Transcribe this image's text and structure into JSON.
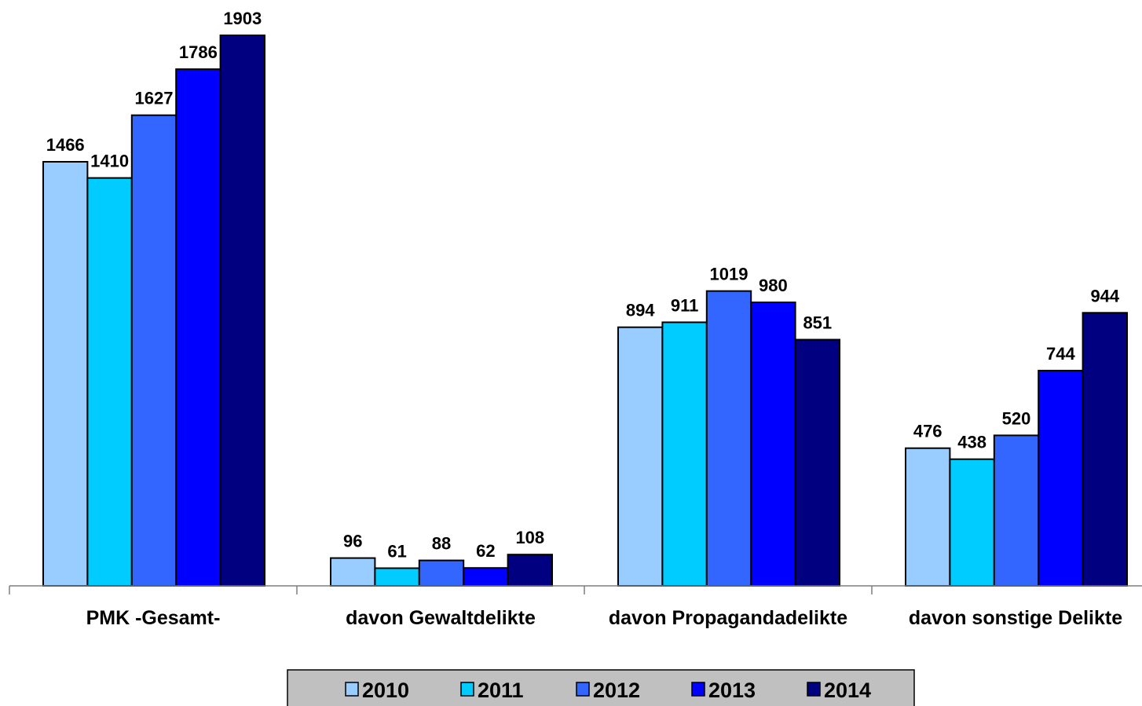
{
  "chart_data": {
    "type": "bar",
    "title": "",
    "xlabel": "",
    "ylabel": "",
    "ylim": [
      0,
      1903
    ],
    "grid": false,
    "legend_position": "bottom",
    "categories": [
      "PMK -Gesamt-",
      "davon Gewaltdelikte",
      "davon Propagandadelikte",
      "davon sonstige Delikte"
    ],
    "series": [
      {
        "name": "2010",
        "color": "#99ccff",
        "values": [
          1466,
          96,
          894,
          476
        ]
      },
      {
        "name": "2011",
        "color": "#00ccff",
        "values": [
          1410,
          61,
          911,
          438
        ]
      },
      {
        "name": "2012",
        "color": "#3366ff",
        "values": [
          1627,
          88,
          1019,
          520
        ]
      },
      {
        "name": "2013",
        "color": "#0000ff",
        "values": [
          1786,
          62,
          980,
          744
        ]
      },
      {
        "name": "2014",
        "color": "#000080",
        "values": [
          1903,
          108,
          851,
          944
        ]
      }
    ],
    "legend_background": "#c0c0c0"
  }
}
